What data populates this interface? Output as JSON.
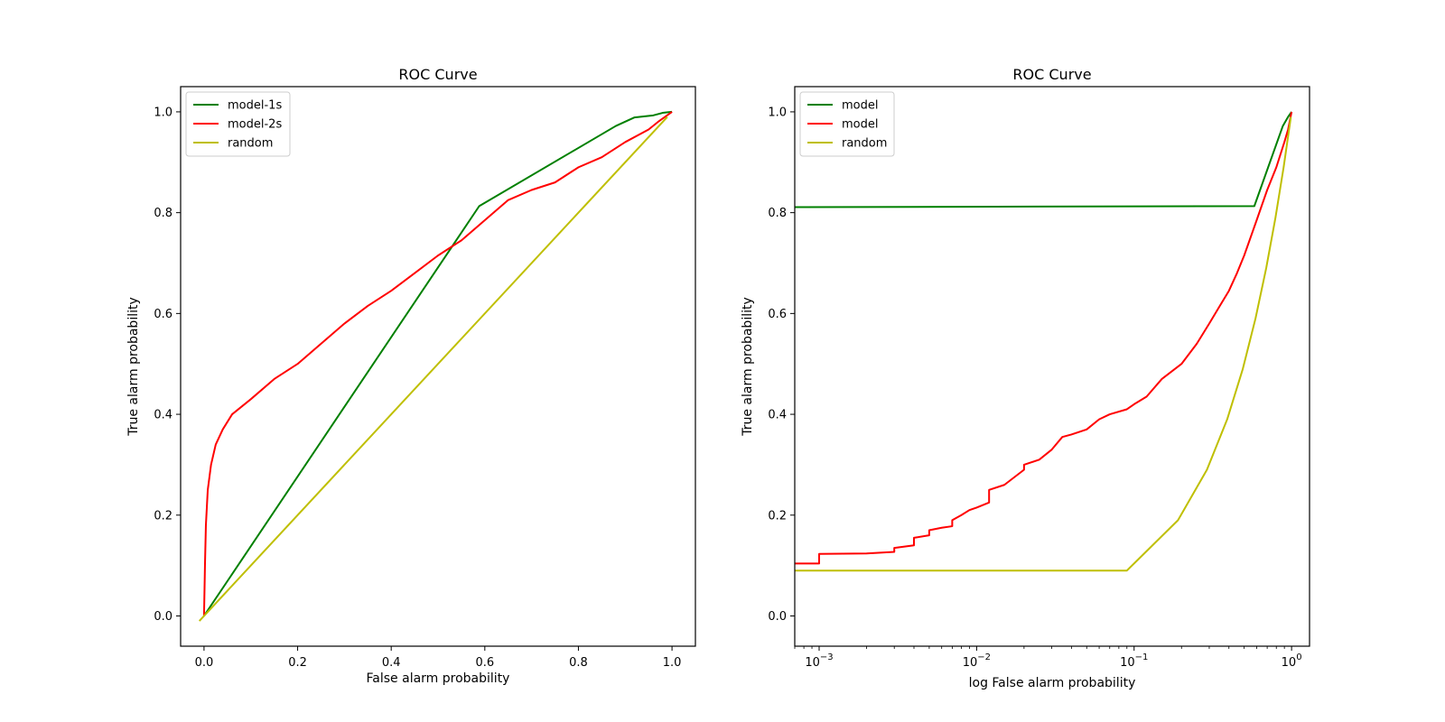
{
  "chart_data": [
    {
      "type": "line",
      "title": "ROC Curve",
      "xlabel": "False alarm probability",
      "ylabel": "True alarm probability",
      "xscale": "linear",
      "xlim": [
        -0.05,
        1.05
      ],
      "ylim": [
        -0.06,
        1.05
      ],
      "xticks": [
        {
          "value": 0.0,
          "label": "0.0"
        },
        {
          "value": 0.2,
          "label": "0.2"
        },
        {
          "value": 0.4,
          "label": "0.4"
        },
        {
          "value": 0.6,
          "label": "0.6"
        },
        {
          "value": 0.8,
          "label": "0.8"
        },
        {
          "value": 1.0,
          "label": "1.0"
        }
      ],
      "yticks": [
        {
          "value": 0.0,
          "label": "0.0"
        },
        {
          "value": 0.2,
          "label": "0.2"
        },
        {
          "value": 0.4,
          "label": "0.4"
        },
        {
          "value": 0.6,
          "label": "0.6"
        },
        {
          "value": 0.8,
          "label": "0.8"
        },
        {
          "value": 1.0,
          "label": "1.0"
        }
      ],
      "legend_loc": "upper-left",
      "series": [
        {
          "name": "model-1s",
          "color": "#008000",
          "points": [
            [
              0,
              0
            ],
            [
              0.588,
              0.813
            ],
            [
              0.88,
              0.972
            ],
            [
              0.92,
              0.989
            ],
            [
              0.96,
              0.993
            ],
            [
              0.98,
              0.998
            ],
            [
              1.0,
              1.0
            ]
          ]
        },
        {
          "name": "model-2s",
          "color": "#ff0000",
          "points": [
            [
              0,
              0
            ],
            [
              0.002,
              0.1
            ],
            [
              0.004,
              0.18
            ],
            [
              0.008,
              0.25
            ],
            [
              0.015,
              0.3
            ],
            [
              0.025,
              0.34
            ],
            [
              0.04,
              0.37
            ],
            [
              0.06,
              0.4
            ],
            [
              0.1,
              0.43
            ],
            [
              0.15,
              0.47
            ],
            [
              0.2,
              0.5
            ],
            [
              0.25,
              0.54
            ],
            [
              0.3,
              0.58
            ],
            [
              0.35,
              0.615
            ],
            [
              0.4,
              0.645
            ],
            [
              0.45,
              0.68
            ],
            [
              0.5,
              0.715
            ],
            [
              0.55,
              0.745
            ],
            [
              0.6,
              0.785
            ],
            [
              0.65,
              0.825
            ],
            [
              0.7,
              0.845
            ],
            [
              0.75,
              0.86
            ],
            [
              0.8,
              0.89
            ],
            [
              0.85,
              0.91
            ],
            [
              0.9,
              0.94
            ],
            [
              0.95,
              0.965
            ],
            [
              0.97,
              0.98
            ],
            [
              1.0,
              1.0
            ]
          ]
        },
        {
          "name": "random",
          "color": "#bfbf00",
          "points": [
            [
              -0.01,
              -0.01
            ],
            [
              0.99,
              0.99
            ]
          ]
        }
      ]
    },
    {
      "type": "line",
      "title": "ROC Curve",
      "xlabel": "log False alarm probability",
      "ylabel": "True alarm probability",
      "xscale": "log",
      "xlim": [
        0.0007,
        1.3
      ],
      "ylim": [
        -0.06,
        1.05
      ],
      "xticks": [
        {
          "value": 0.001,
          "label": "10",
          "sup": "−3"
        },
        {
          "value": 0.01,
          "label": "10",
          "sup": "−2"
        },
        {
          "value": 0.1,
          "label": "10",
          "sup": "−1"
        },
        {
          "value": 1,
          "label": "10",
          "sup": "0"
        }
      ],
      "yticks": [
        {
          "value": 0.0,
          "label": "0.0"
        },
        {
          "value": 0.2,
          "label": "0.2"
        },
        {
          "value": 0.4,
          "label": "0.4"
        },
        {
          "value": 0.6,
          "label": "0.6"
        },
        {
          "value": 0.8,
          "label": "0.8"
        },
        {
          "value": 1.0,
          "label": "1.0"
        }
      ],
      "legend_loc": "upper-left",
      "series": [
        {
          "name": "model",
          "color": "#008000",
          "points": [
            [
              0.0007,
              0.811
            ],
            [
              0.58,
              0.813
            ],
            [
              0.88,
              0.972
            ],
            [
              0.95,
              0.99
            ],
            [
              1.0,
              1.0
            ]
          ]
        },
        {
          "name": "model",
          "color": "#ff0000",
          "points": [
            [
              0.0007,
              0.104
            ],
            [
              0.001,
              0.104
            ],
            [
              0.001,
              0.123
            ],
            [
              0.002,
              0.124
            ],
            [
              0.003,
              0.127
            ],
            [
              0.003,
              0.135
            ],
            [
              0.004,
              0.14
            ],
            [
              0.004,
              0.155
            ],
            [
              0.005,
              0.16
            ],
            [
              0.005,
              0.17
            ],
            [
              0.006,
              0.175
            ],
            [
              0.007,
              0.178
            ],
            [
              0.007,
              0.19
            ],
            [
              0.008,
              0.2
            ],
            [
              0.009,
              0.21
            ],
            [
              0.01,
              0.215
            ],
            [
              0.012,
              0.225
            ],
            [
              0.012,
              0.25
            ],
            [
              0.015,
              0.26
            ],
            [
              0.02,
              0.29
            ],
            [
              0.02,
              0.3
            ],
            [
              0.025,
              0.31
            ],
            [
              0.03,
              0.33
            ],
            [
              0.035,
              0.355
            ],
            [
              0.04,
              0.36
            ],
            [
              0.05,
              0.37
            ],
            [
              0.06,
              0.39
            ],
            [
              0.07,
              0.4
            ],
            [
              0.09,
              0.41
            ],
            [
              0.1,
              0.42
            ],
            [
              0.12,
              0.435
            ],
            [
              0.15,
              0.47
            ],
            [
              0.2,
              0.5
            ],
            [
              0.25,
              0.54
            ],
            [
              0.3,
              0.58
            ],
            [
              0.35,
              0.615
            ],
            [
              0.4,
              0.645
            ],
            [
              0.45,
              0.68
            ],
            [
              0.5,
              0.715
            ],
            [
              0.6,
              0.785
            ],
            [
              0.7,
              0.845
            ],
            [
              0.8,
              0.89
            ],
            [
              0.9,
              0.94
            ],
            [
              0.95,
              0.965
            ],
            [
              1.0,
              1.0
            ]
          ]
        },
        {
          "name": "random",
          "color": "#bfbf00",
          "points": [
            [
              0.0007,
              0.09
            ],
            [
              0.09,
              0.09
            ],
            [
              0.19,
              0.19
            ],
            [
              0.29,
              0.29
            ],
            [
              0.39,
              0.39
            ],
            [
              0.49,
              0.49
            ],
            [
              0.59,
              0.59
            ],
            [
              0.69,
              0.69
            ],
            [
              0.79,
              0.79
            ],
            [
              0.89,
              0.89
            ],
            [
              0.99,
              0.99
            ]
          ]
        }
      ]
    }
  ]
}
